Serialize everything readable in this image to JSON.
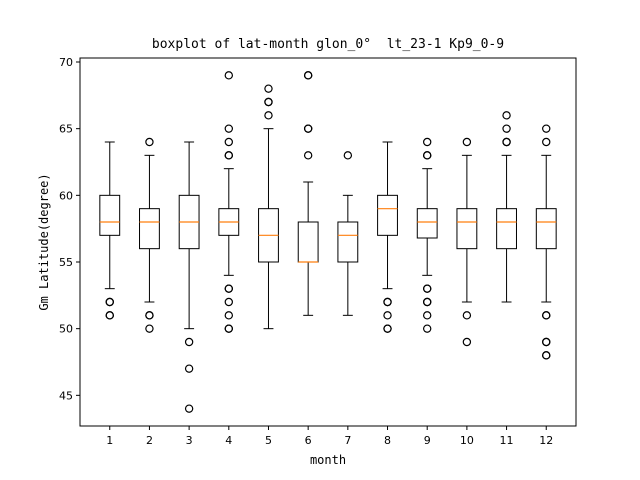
{
  "chart_data": {
    "type": "boxplot",
    "title": "boxplot of lat-month glon_0°  lt_23-1 Kp9_0-9",
    "xlabel": "month",
    "ylabel": "Gm Latitude(degree)",
    "categories": [
      "1",
      "2",
      "3",
      "4",
      "5",
      "6",
      "7",
      "8",
      "9",
      "10",
      "11",
      "12"
    ],
    "ylim": [
      42.7,
      70.3
    ],
    "yticks": [
      45,
      50,
      55,
      60,
      65,
      70
    ],
    "grid": false,
    "colors": {
      "box": "#000000",
      "median": "#ff7f0e",
      "background": "#ffffff"
    },
    "boxes": [
      {
        "month": "1",
        "whislo": 53,
        "q1": 57,
        "med": 58,
        "q3": 60,
        "whishi": 64,
        "fliers": [
          52,
          52,
          51,
          51
        ]
      },
      {
        "month": "2",
        "whislo": 52,
        "q1": 56,
        "med": 58,
        "q3": 59,
        "whishi": 63,
        "fliers": [
          64,
          51,
          51,
          50
        ]
      },
      {
        "month": "3",
        "whislo": 50,
        "q1": 56,
        "med": 58,
        "q3": 60,
        "whishi": 64,
        "fliers": [
          49,
          47,
          44
        ]
      },
      {
        "month": "4",
        "whislo": 54,
        "q1": 57,
        "med": 58,
        "q3": 59,
        "whishi": 62,
        "fliers": [
          69,
          65,
          64,
          63,
          63,
          53,
          53,
          52,
          51,
          50,
          50
        ]
      },
      {
        "month": "5",
        "whislo": 50,
        "q1": 55,
        "med": 57,
        "q3": 59,
        "whishi": 65,
        "fliers": [
          68,
          67,
          67,
          66
        ]
      },
      {
        "month": "6",
        "whislo": 51,
        "q1": 55,
        "med": 55,
        "q3": 58,
        "whishi": 61,
        "fliers": [
          69,
          69,
          65,
          65,
          63
        ]
      },
      {
        "month": "7",
        "whislo": 51,
        "q1": 55,
        "med": 57,
        "q3": 58,
        "whishi": 60,
        "fliers": [
          63
        ]
      },
      {
        "month": "8",
        "whislo": 53,
        "q1": 57,
        "med": 59,
        "q3": 60,
        "whishi": 64,
        "fliers": [
          52,
          52,
          51,
          50,
          50
        ]
      },
      {
        "month": "9",
        "whislo": 54,
        "q1": 56.8,
        "med": 58,
        "q3": 59,
        "whishi": 62,
        "fliers": [
          64,
          63,
          63,
          53,
          53,
          52,
          52,
          51,
          50
        ]
      },
      {
        "month": "10",
        "whislo": 52,
        "q1": 56,
        "med": 58,
        "q3": 59,
        "whishi": 63,
        "fliers": [
          64,
          51,
          49
        ]
      },
      {
        "month": "11",
        "whislo": 52,
        "q1": 56,
        "med": 58,
        "q3": 59,
        "whishi": 63,
        "fliers": [
          66,
          65,
          64,
          64
        ]
      },
      {
        "month": "12",
        "whislo": 52,
        "q1": 56,
        "med": 58,
        "q3": 59,
        "whishi": 63,
        "fliers": [
          65,
          64,
          51,
          51,
          49,
          49,
          48,
          48
        ]
      }
    ]
  }
}
